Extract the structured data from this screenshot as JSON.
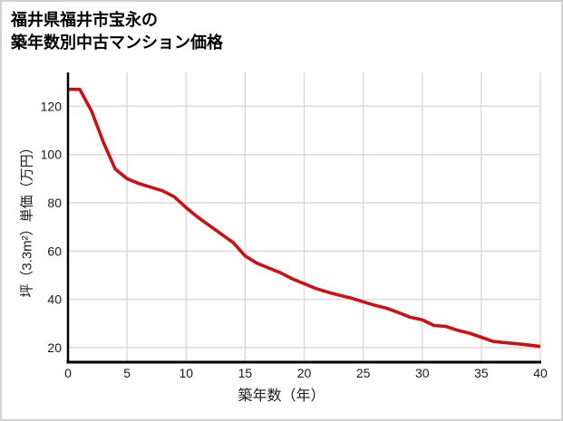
{
  "header": {
    "title_line1": "福井県福井市宝永の",
    "title_line2": "築年数別中古マンション価格"
  },
  "chart_data": {
    "type": "line",
    "title": "福井県福井市宝永の築年数別中古マンション価格",
    "xlabel": "築年数（年）",
    "ylabel": "坪（3.3m²）単価（万円）",
    "x": [
      0,
      1,
      2,
      3,
      4,
      5,
      6,
      7,
      8,
      9,
      10,
      11,
      12,
      13,
      14,
      15,
      16,
      17,
      18,
      19,
      20,
      21,
      22,
      23,
      24,
      25,
      26,
      27,
      28,
      29,
      30,
      31,
      32,
      33,
      34,
      35,
      36,
      37,
      38,
      39,
      40
    ],
    "values": [
      127,
      127,
      118,
      105,
      94,
      90,
      88,
      86.5,
      85,
      82.5,
      78,
      74,
      70.5,
      67,
      63.5,
      58,
      55,
      53,
      51,
      48.5,
      46.5,
      44.5,
      43,
      41.7,
      40.5,
      39,
      37.5,
      36.3,
      34.5,
      32.6,
      31.5,
      29.2,
      28.8,
      27.2,
      26,
      24.3,
      22.6,
      22.1,
      21.6,
      21.1,
      20.5
    ],
    "xlim": [
      0,
      40
    ],
    "ylim": [
      14,
      134
    ],
    "xticks": [
      0,
      5,
      10,
      15,
      20,
      25,
      30,
      35,
      40
    ],
    "yticks": [
      20,
      40,
      60,
      80,
      100,
      120
    ],
    "grid": true,
    "legend": "none",
    "line_color": "#cc1112",
    "axis_color": "#000000",
    "grid_color": "#d9d9d9",
    "tick_label_color": "#1a1a1a"
  }
}
